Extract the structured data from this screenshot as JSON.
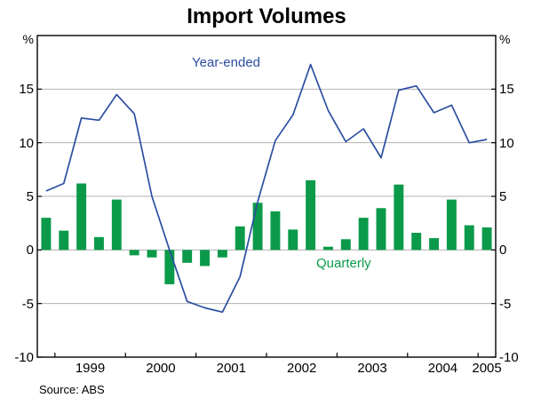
{
  "title": "Import Volumes",
  "source": "Source: ABS",
  "unit_left": "%",
  "unit_right": "%",
  "series_labels": {
    "line": "Year-ended",
    "bar": "Quarterly"
  },
  "colors": {
    "line": "#2c4ea0",
    "bar": "#0a9a4a",
    "grid": "#b3b3b3",
    "frame": "#000000",
    "text": "#000000"
  },
  "chart_data": {
    "type": "mixed",
    "x_quarters": [
      "1998Q4",
      "1999Q1",
      "1999Q2",
      "1999Q3",
      "1999Q4",
      "2000Q1",
      "2000Q2",
      "2000Q3",
      "2000Q4",
      "2001Q1",
      "2001Q2",
      "2001Q3",
      "2001Q4",
      "2002Q1",
      "2002Q2",
      "2002Q3",
      "2002Q4",
      "2003Q1",
      "2003Q2",
      "2003Q3",
      "2003Q4",
      "2004Q1",
      "2004Q2",
      "2004Q3",
      "2004Q4",
      "2005Q1"
    ],
    "series": [
      {
        "name": "Year-ended",
        "type": "line",
        "values": [
          5.5,
          6.2,
          12.3,
          12.1,
          14.5,
          12.7,
          5.0,
          0.0,
          -4.8,
          -5.4,
          -5.8,
          -2.5,
          4.5,
          10.2,
          12.6,
          17.3,
          13.0,
          10.1,
          11.3,
          8.6,
          14.9,
          15.3,
          12.8,
          13.5,
          10.0,
          10.3
        ]
      },
      {
        "name": "Quarterly",
        "type": "bar",
        "values": [
          3.0,
          1.8,
          6.2,
          1.2,
          4.7,
          -0.5,
          -0.7,
          -3.2,
          -1.2,
          -1.5,
          -0.7,
          2.2,
          4.4,
          3.6,
          1.9,
          6.5,
          0.3,
          1.0,
          3.0,
          3.9,
          6.1,
          1.6,
          1.1,
          4.7,
          2.3,
          2.1
        ]
      }
    ],
    "year_ticks": [
      "1999",
      "2000",
      "2001",
      "2002",
      "2003",
      "2004",
      "2005"
    ],
    "y_ticks": [
      -10,
      -5,
      0,
      5,
      10,
      15
    ],
    "ylim": [
      -10,
      20
    ],
    "grid": true,
    "legend": "inline-annotations",
    "ylabel_left": "%",
    "ylabel_right": "%"
  }
}
